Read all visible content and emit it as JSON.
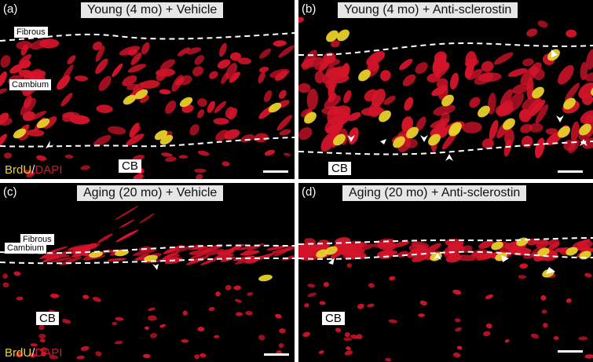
{
  "panels": [
    {
      "id": "a",
      "label": "(a)",
      "title": "Young (4 mo) + Vehicle",
      "fibrous": "Fibrous",
      "cambium": "Cambium",
      "cb": "CB",
      "stain": {
        "brdu": "BrdU",
        "sep": "/",
        "dapi": "DAPI"
      }
    },
    {
      "id": "b",
      "label": "(b)",
      "title": "Young (4 mo) + Anti-sclerostin",
      "cb": "CB"
    },
    {
      "id": "c",
      "label": "(c)",
      "title": "Aging (20 mo) + Vehicle",
      "fibrous": "Fibrous",
      "cambium": "Cambium",
      "cb": "CB",
      "stain": {
        "brdu": "BrdU",
        "sep": "/",
        "dapi": "DAPI"
      }
    },
    {
      "id": "d",
      "label": "(d)",
      "title": "Aging (20 mo) + Anti-sclerostin",
      "cb": "CB"
    }
  ],
  "colors": {
    "background": "#000000",
    "dapi": "#d4142a",
    "brdu": "#e8d02a",
    "boundary": "#ffffff",
    "arrow": "#ffffff"
  },
  "icons": {
    "arrow": "arrowhead-icon"
  }
}
